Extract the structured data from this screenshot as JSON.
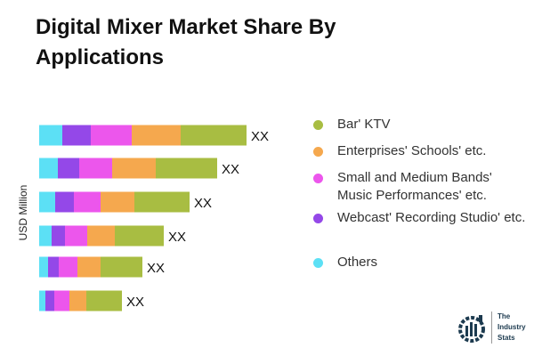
{
  "chart_data": {
    "type": "bar",
    "orientation": "horizontal",
    "stacked": true,
    "title": "Digital Mixer Market Share By Applications",
    "ylabel": "USD Million",
    "categories": [
      "",
      "",
      "",
      "",
      "",
      ""
    ],
    "data_labels": [
      "XX",
      "XX",
      "XX",
      "XX",
      "XX",
      "XX"
    ],
    "series": [
      {
        "name": "Others",
        "color": "#5ce0f5",
        "values": [
          26,
          21,
          18,
          14,
          10,
          7
        ]
      },
      {
        "name": "Webcast' Recording Studio' etc.",
        "color": "#9448e8",
        "values": [
          32,
          24,
          21,
          15,
          12,
          10
        ]
      },
      {
        "name": "Small and Medium Bands' Music Performances' etc.",
        "color": "#ec56ec",
        "values": [
          46,
          37,
          30,
          25,
          21,
          17
        ]
      },
      {
        "name": "Enterprises' Schools' etc.",
        "color": "#f5a84e",
        "values": [
          55,
          49,
          38,
          31,
          26,
          19
        ]
      },
      {
        "name": "Bar' KTV",
        "color": "#a8bd42",
        "values": [
          74,
          69,
          62,
          55,
          47,
          40
        ]
      }
    ],
    "grid": false,
    "legend_position": "right"
  },
  "legend_order": [
    4,
    3,
    2,
    1,
    0
  ],
  "logo_text": "The Industry Stats"
}
